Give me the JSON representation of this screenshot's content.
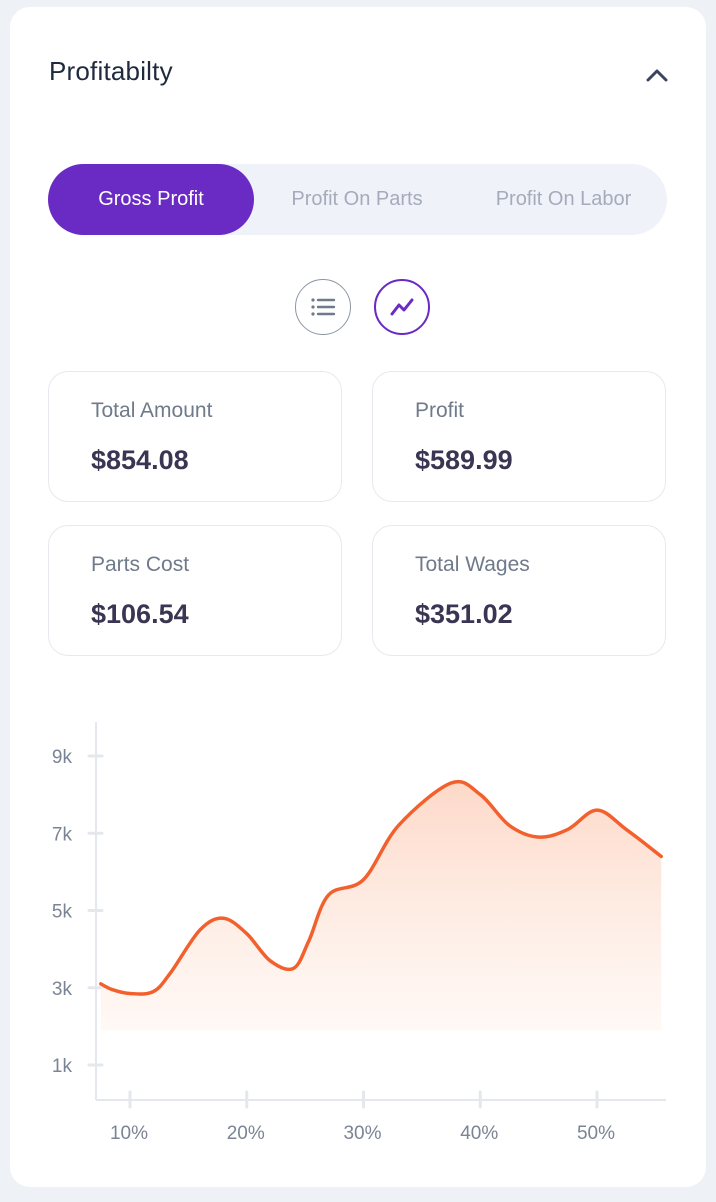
{
  "header": {
    "title": "Profitabilty"
  },
  "tabs": [
    {
      "label": "Gross Profit",
      "active": true
    },
    {
      "label": "Profit On Parts",
      "active": false
    },
    {
      "label": "Profit On Labor",
      "active": false
    }
  ],
  "view_toggles": {
    "list_icon": "list-icon",
    "chart_icon": "trend-line-icon",
    "selected": "chart"
  },
  "stats": [
    {
      "label": "Total Amount",
      "value": "$854.08"
    },
    {
      "label": "Profit",
      "value": "$589.99"
    },
    {
      "label": "Parts Cost",
      "value": "$106.54"
    },
    {
      "label": "Total Wages",
      "value": "$351.02"
    }
  ],
  "colors": {
    "accent": "#6a2ac4",
    "line": "#f2602d",
    "text_dark": "#3a3552"
  },
  "chart_data": {
    "type": "area",
    "x": [
      7.5,
      8.5,
      10,
      12,
      13.5,
      16,
      18,
      20,
      22,
      24,
      25.3,
      27,
      30,
      33,
      37.5,
      40,
      42.5,
      45,
      47.5,
      50,
      52.5,
      55.5
    ],
    "values": [
      3100,
      2950,
      2850,
      2900,
      3400,
      4500,
      4800,
      4400,
      3700,
      3500,
      4200,
      5400,
      5800,
      7200,
      8300,
      8000,
      7200,
      6900,
      7100,
      7600,
      7100,
      6400
    ],
    "x_ticks": [
      "10%",
      "20%",
      "30%",
      "40%",
      "50%"
    ],
    "y_ticks": [
      "1k",
      "3k",
      "5k",
      "7k",
      "9k"
    ],
    "xlim": [
      7,
      56
    ],
    "ylim": [
      0,
      10000
    ]
  }
}
